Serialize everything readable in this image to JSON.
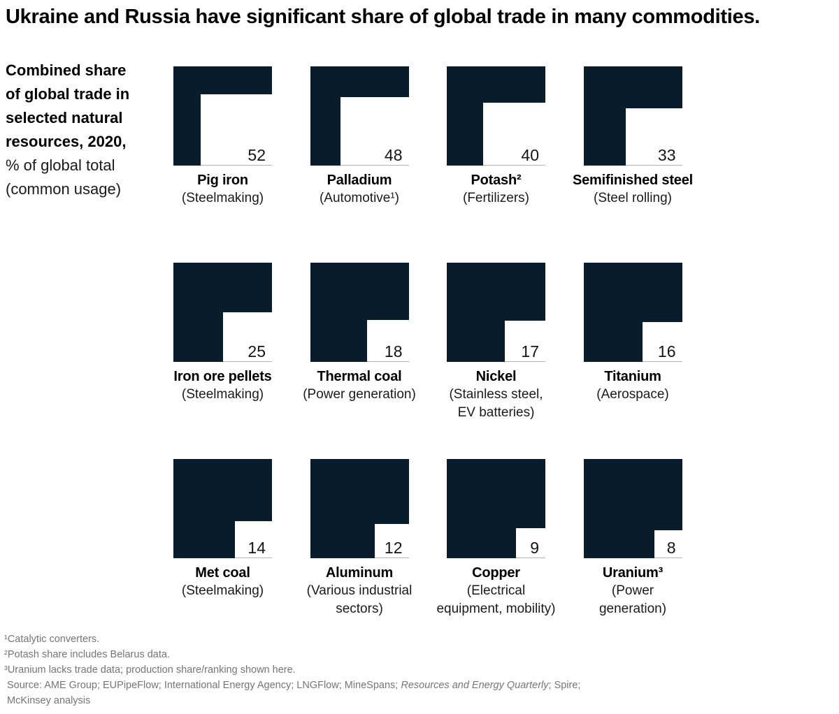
{
  "title": "Ukraine and Russia have significant share of global trade in many commodities.",
  "subtitle": {
    "bold": "Combined share\nof global trade in\nselected natural\nresources, 2020,",
    "regular": "% of global total\n(common usage)"
  },
  "colors": {
    "navy": "#081c2c",
    "baseline_gray": "#b3b3b3",
    "footnote_gray": "#757575",
    "number": "#141414"
  },
  "chart_data": {
    "type": "square_area",
    "title": "Combined share of global trade in selected natural resources, 2020, % of global total (common usage)",
    "unit": "% of global total",
    "note": "Each tile is a dark square; the white square cut from the bottom-right corner has an area equal to the value in % of the whole square.",
    "items": [
      {
        "name": "Pig iron",
        "sub": "(Steelmaking)",
        "value": 52
      },
      {
        "name": "Palladium",
        "sub": "(Automotive¹)",
        "value": 48
      },
      {
        "name": "Potash²",
        "sub": "(Fertilizers)",
        "value": 40
      },
      {
        "name": "Semifinished steel",
        "sub": "(Steel rolling)",
        "value": 33
      },
      {
        "name": "Iron ore pellets",
        "sub": "(Steelmaking)",
        "value": 25
      },
      {
        "name": "Thermal coal",
        "sub": "(Power generation)",
        "value": 18
      },
      {
        "name": "Nickel",
        "sub": "(Stainless steel,\nEV batteries)",
        "value": 17
      },
      {
        "name": "Titanium",
        "sub": "(Aerospace)",
        "value": 16
      },
      {
        "name": "Met coal",
        "sub": "(Steelmaking)",
        "value": 14
      },
      {
        "name": "Aluminum",
        "sub": "(Various industrial\nsectors)",
        "value": 12
      },
      {
        "name": "Copper",
        "sub": "(Electrical\nequipment, mobility)",
        "value": 9
      },
      {
        "name": "Uranium³",
        "sub": "(Power\ngeneration)",
        "value": 8
      }
    ]
  },
  "footnotes": [
    "¹Catalytic converters.",
    "²Potash share includes Belarus data.",
    "³Uranium lacks trade data; production share/ranking shown here."
  ],
  "source": {
    "prefix": "Source: AME Group; EUPipeFlow; International Energy Agency; LNGFlow; MineSpans; ",
    "italic": "Resources and Energy Quarterly",
    "suffix": "; Spire;",
    "line2": "McKinsey analysis"
  }
}
